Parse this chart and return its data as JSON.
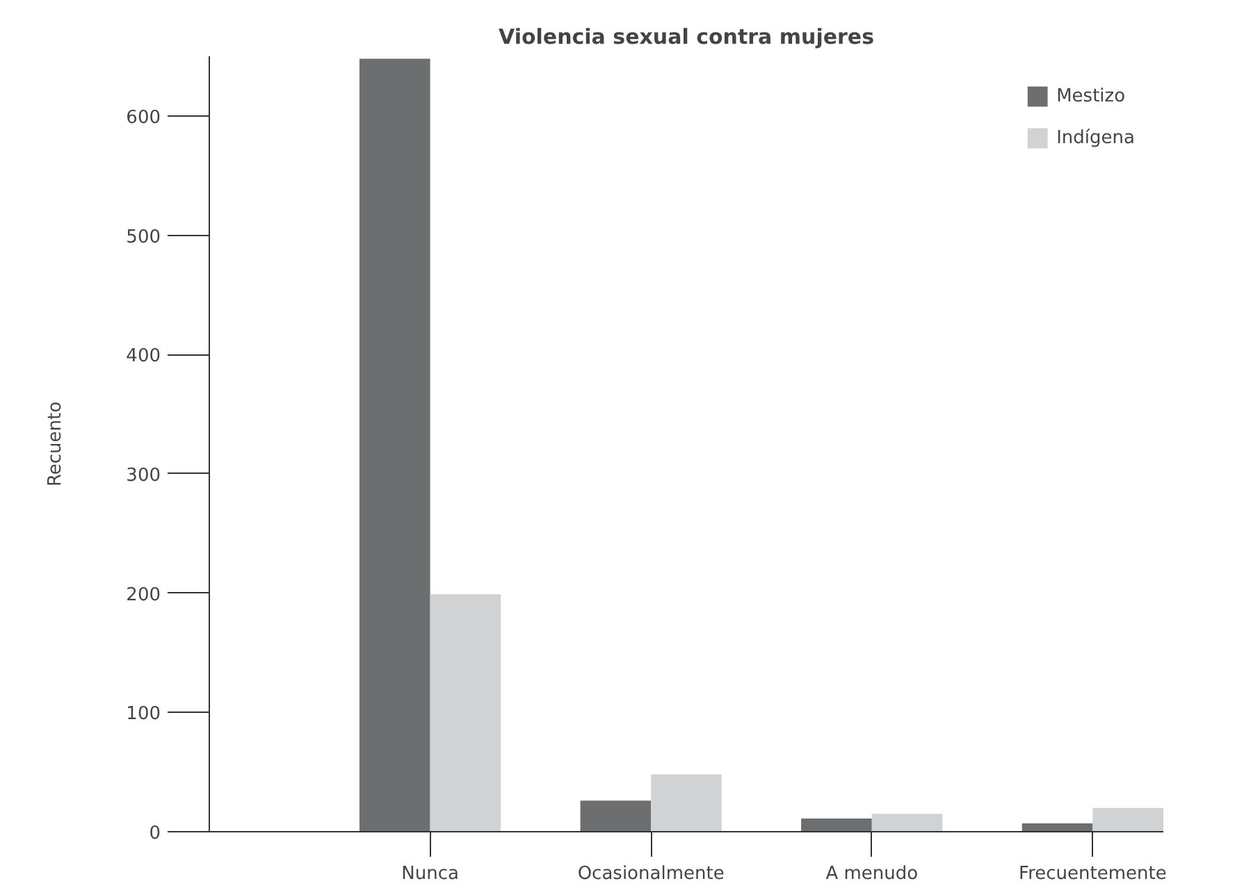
{
  "chart_data": {
    "type": "bar",
    "title": "Violencia sexual contra mujeres",
    "ylabel": "Recuento",
    "categories": [
      "Nunca",
      "Ocasionalmente",
      "A menudo",
      "Frecuentemente"
    ],
    "series": [
      {
        "name": "Mestizo",
        "color": "#6d6e70",
        "values": [
          648,
          26,
          11,
          7
        ]
      },
      {
        "name": "Indígena",
        "color": "#d1d2d4",
        "values": [
          199,
          48,
          15,
          20
        ]
      }
    ],
    "ylim": [
      0,
      650
    ],
    "yticks": [
      0,
      100,
      200,
      300,
      400,
      500,
      600
    ],
    "grid": false,
    "legend": "top right"
  }
}
